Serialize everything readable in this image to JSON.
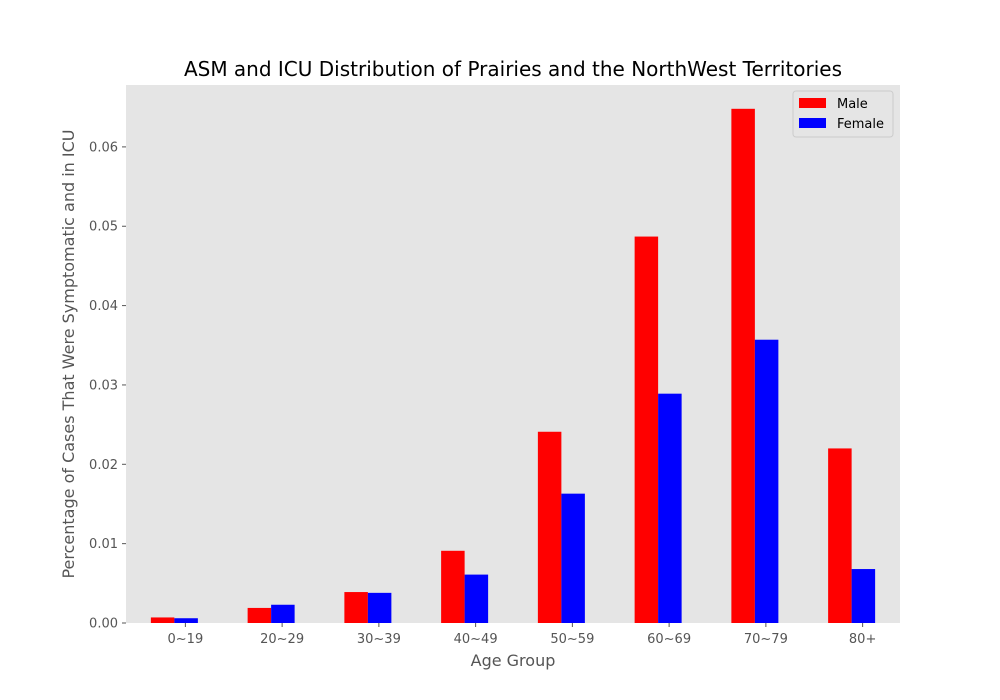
{
  "chart_data": {
    "type": "bar",
    "title": "ASM and ICU Distribution of Prairies and the NorthWest Territories",
    "xlabel": "Age Group",
    "ylabel": "Percentage of Cases That Were Symptomatic and in ICU",
    "categories": [
      "0~19",
      "20~29",
      "30~39",
      "40~49",
      "50~59",
      "60~69",
      "70~79",
      "80+"
    ],
    "series": [
      {
        "name": "Male",
        "color": "#ff0000",
        "values": [
          0.0007,
          0.0019,
          0.0039,
          0.0091,
          0.0241,
          0.0487,
          0.0648,
          0.022
        ]
      },
      {
        "name": "Female",
        "color": "#0000ff",
        "values": [
          0.0006,
          0.0023,
          0.0038,
          0.0061,
          0.0163,
          0.0289,
          0.0357,
          0.0068
        ]
      }
    ],
    "ylim": [
      0,
      0.0678
    ],
    "yticks": [
      "0.00",
      "0.01",
      "0.02",
      "0.03",
      "0.04",
      "0.05",
      "0.06"
    ],
    "grid": false,
    "legend_position": "top-right",
    "plot_background": "#e5e5e5"
  }
}
